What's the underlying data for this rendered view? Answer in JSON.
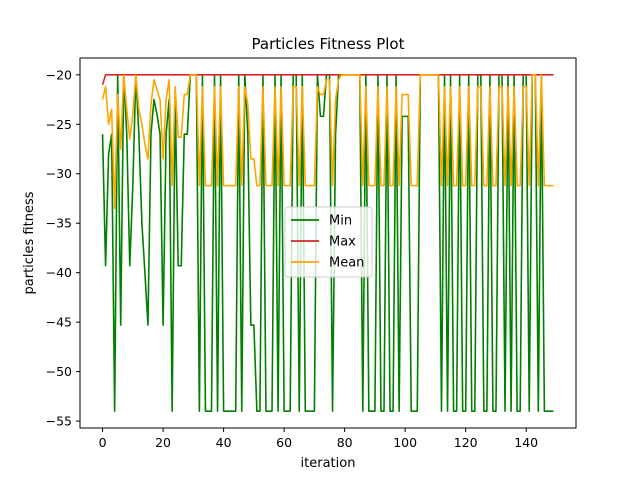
{
  "chart_data": {
    "type": "line",
    "title": "Particles Fitness Plot",
    "xlabel": "iteration",
    "ylabel": "particles fitness",
    "xlim": [
      -7.45,
      156.45
    ],
    "ylim": [
      -55.7,
      -18.3
    ],
    "xticks": [
      0,
      20,
      40,
      60,
      80,
      100,
      120,
      140
    ],
    "yticks": [
      -55,
      -50,
      -45,
      -40,
      -35,
      -30,
      -25,
      -20
    ],
    "grid": false,
    "legend": "center",
    "series": [
      {
        "name": "Min",
        "color": "#008000",
        "points": [
          [
            0,
            -26
          ],
          [
            1,
            -39.3
          ],
          [
            2,
            -28
          ],
          [
            3,
            -26
          ],
          [
            4,
            -54
          ],
          [
            5,
            -20
          ],
          [
            6,
            -45.3
          ],
          [
            7,
            -20
          ],
          [
            8,
            -26
          ],
          [
            9,
            -39.3
          ],
          [
            10,
            -31.2
          ],
          [
            11,
            -20
          ],
          [
            12,
            -26
          ],
          [
            13,
            -35
          ],
          [
            14,
            -40
          ],
          [
            15,
            -45.3
          ],
          [
            16,
            -26
          ],
          [
            17,
            -22.5
          ],
          [
            18,
            -24
          ],
          [
            19,
            -26
          ],
          [
            20,
            -45.3
          ],
          [
            21,
            -26
          ],
          [
            22,
            -22.5
          ],
          [
            23,
            -54
          ],
          [
            24,
            -22.5
          ],
          [
            25,
            -39.3
          ],
          [
            26,
            -39.3
          ],
          [
            27,
            -26
          ],
          [
            28,
            -26
          ],
          [
            29,
            -20
          ],
          [
            30,
            -20
          ],
          [
            31,
            -20
          ],
          [
            32,
            -54
          ],
          [
            33,
            -20
          ],
          [
            34,
            -54
          ],
          [
            35,
            -54
          ],
          [
            36,
            -54
          ],
          [
            37,
            -20
          ],
          [
            38,
            -54
          ],
          [
            39,
            -20
          ],
          [
            40,
            -54
          ],
          [
            41,
            -54
          ],
          [
            42,
            -54
          ],
          [
            43,
            -54
          ],
          [
            44,
            -54
          ],
          [
            45,
            -20
          ],
          [
            46,
            -54
          ],
          [
            47,
            -20
          ],
          [
            48,
            -26
          ],
          [
            49,
            -45.3
          ],
          [
            50,
            -45.3
          ],
          [
            51,
            -54
          ],
          [
            52,
            -54
          ],
          [
            53,
            -20
          ],
          [
            54,
            -54
          ],
          [
            55,
            -54
          ],
          [
            56,
            -54
          ],
          [
            57,
            -20
          ],
          [
            58,
            -54
          ],
          [
            59,
            -20
          ],
          [
            60,
            -54
          ],
          [
            61,
            -54
          ],
          [
            62,
            -54
          ],
          [
            63,
            -20
          ],
          [
            64,
            -20
          ],
          [
            65,
            -54
          ],
          [
            66,
            -20
          ],
          [
            67,
            -54
          ],
          [
            68,
            -54
          ],
          [
            69,
            -54
          ],
          [
            70,
            -54
          ],
          [
            71,
            -20
          ],
          [
            72,
            -24.2
          ],
          [
            73,
            -24.2
          ],
          [
            74,
            -20
          ],
          [
            75,
            -20
          ],
          [
            76,
            -54
          ],
          [
            77,
            -26
          ],
          [
            78,
            -20
          ],
          [
            79,
            -20
          ],
          [
            80,
            -20
          ],
          [
            81,
            -20
          ],
          [
            82,
            -20
          ],
          [
            83,
            -20
          ],
          [
            84,
            -20
          ],
          [
            85,
            -20
          ],
          [
            86,
            -54
          ],
          [
            87,
            -20
          ],
          [
            88,
            -54
          ],
          [
            89,
            -54
          ],
          [
            90,
            -54
          ],
          [
            91,
            -20
          ],
          [
            92,
            -54
          ],
          [
            93,
            -54
          ],
          [
            94,
            -20
          ],
          [
            95,
            -54
          ],
          [
            96,
            -54
          ],
          [
            97,
            -20
          ],
          [
            98,
            -54
          ],
          [
            99,
            -24.2
          ],
          [
            100,
            -24.2
          ],
          [
            101,
            -24.2
          ],
          [
            102,
            -54
          ],
          [
            103,
            -54
          ],
          [
            104,
            -54
          ],
          [
            105,
            -20
          ],
          [
            106,
            -20
          ],
          [
            107,
            -20
          ],
          [
            108,
            -20
          ],
          [
            109,
            -20
          ],
          [
            110,
            -20
          ],
          [
            111,
            -20
          ],
          [
            112,
            -54
          ],
          [
            113,
            -20
          ],
          [
            114,
            -54
          ],
          [
            115,
            -20
          ],
          [
            116,
            -54
          ],
          [
            117,
            -54
          ],
          [
            118,
            -20
          ],
          [
            119,
            -54
          ],
          [
            120,
            -54
          ],
          [
            121,
            -20
          ],
          [
            122,
            -54
          ],
          [
            123,
            -54
          ],
          [
            124,
            -20
          ],
          [
            125,
            -20
          ],
          [
            126,
            -54
          ],
          [
            127,
            -54
          ],
          [
            128,
            -20
          ],
          [
            129,
            -54
          ],
          [
            130,
            -54
          ],
          [
            131,
            -20
          ],
          [
            132,
            -20
          ],
          [
            133,
            -54
          ],
          [
            134,
            -20
          ],
          [
            135,
            -54
          ],
          [
            136,
            -20
          ],
          [
            137,
            -54
          ],
          [
            138,
            -54
          ],
          [
            139,
            -20
          ],
          [
            140,
            -20
          ],
          [
            141,
            -54
          ],
          [
            142,
            -20
          ],
          [
            143,
            -20
          ],
          [
            144,
            -54
          ],
          [
            145,
            -20
          ],
          [
            146,
            -54
          ],
          [
            147,
            -54
          ],
          [
            148,
            -54
          ],
          [
            149,
            -54
          ]
        ]
      },
      {
        "name": "Max",
        "color": "#d62728",
        "points": [
          [
            0,
            -21
          ],
          [
            1,
            -20
          ],
          [
            149,
            -20
          ]
        ]
      },
      {
        "name": "Mean",
        "color": "#ffa500",
        "points": [
          [
            0,
            -22.5
          ],
          [
            1,
            -21.2
          ],
          [
            2,
            -25
          ],
          [
            3,
            -23.5
          ],
          [
            4,
            -33.5
          ],
          [
            5,
            -22
          ],
          [
            6,
            -27.5
          ],
          [
            7,
            -20
          ],
          [
            8,
            -23.5
          ],
          [
            9,
            -26.5
          ],
          [
            10,
            -24
          ],
          [
            11,
            -20
          ],
          [
            12,
            -23.5
          ],
          [
            13,
            -25
          ],
          [
            14,
            -27
          ],
          [
            15,
            -28.5
          ],
          [
            16,
            -23
          ],
          [
            17,
            -20.5
          ],
          [
            18,
            -21.5
          ],
          [
            19,
            -22.5
          ],
          [
            20,
            -28.5
          ],
          [
            21,
            -22.5
          ],
          [
            22,
            -20.5
          ],
          [
            23,
            -31.2
          ],
          [
            24,
            -21.2
          ],
          [
            25,
            -26.3
          ],
          [
            26,
            -26.3
          ],
          [
            27,
            -22
          ],
          [
            28,
            -22
          ],
          [
            29,
            -20
          ],
          [
            30,
            -20
          ],
          [
            31,
            -20
          ],
          [
            32,
            -31.2
          ],
          [
            33,
            -21.2
          ],
          [
            34,
            -31.2
          ],
          [
            35,
            -31.2
          ],
          [
            36,
            -31.2
          ],
          [
            37,
            -21.2
          ],
          [
            38,
            -31.2
          ],
          [
            39,
            -21.2
          ],
          [
            40,
            -31.2
          ],
          [
            41,
            -31.2
          ],
          [
            42,
            -31.2
          ],
          [
            43,
            -31.2
          ],
          [
            44,
            -31.2
          ],
          [
            45,
            -21.2
          ],
          [
            46,
            -31.2
          ],
          [
            47,
            -21.2
          ],
          [
            48,
            -23
          ],
          [
            49,
            -28.5
          ],
          [
            50,
            -28.5
          ],
          [
            51,
            -31.2
          ],
          [
            52,
            -31.2
          ],
          [
            53,
            -21.2
          ],
          [
            54,
            -31.2
          ],
          [
            55,
            -31.2
          ],
          [
            56,
            -31.2
          ],
          [
            57,
            -21.2
          ],
          [
            58,
            -31.2
          ],
          [
            59,
            -21.2
          ],
          [
            60,
            -31.2
          ],
          [
            61,
            -31.2
          ],
          [
            62,
            -31.2
          ],
          [
            63,
            -21.2
          ],
          [
            64,
            -21.2
          ],
          [
            65,
            -31.2
          ],
          [
            66,
            -21.2
          ],
          [
            67,
            -31.2
          ],
          [
            68,
            -31.2
          ],
          [
            69,
            -31.2
          ],
          [
            70,
            -31.2
          ],
          [
            71,
            -21.2
          ],
          [
            72,
            -22
          ],
          [
            73,
            -22
          ],
          [
            74,
            -20.5
          ],
          [
            75,
            -20.5
          ],
          [
            76,
            -31.2
          ],
          [
            77,
            -22.5
          ],
          [
            78,
            -20.5
          ],
          [
            79,
            -20
          ],
          [
            80,
            -20
          ],
          [
            81,
            -20
          ],
          [
            82,
            -20
          ],
          [
            83,
            -20
          ],
          [
            84,
            -20
          ],
          [
            85,
            -20
          ],
          [
            86,
            -31.2
          ],
          [
            87,
            -21.2
          ],
          [
            88,
            -31.2
          ],
          [
            89,
            -31.2
          ],
          [
            90,
            -31.2
          ],
          [
            91,
            -21.2
          ],
          [
            92,
            -31.2
          ],
          [
            93,
            -31.2
          ],
          [
            94,
            -21.2
          ],
          [
            95,
            -31.2
          ],
          [
            96,
            -31.2
          ],
          [
            97,
            -21.2
          ],
          [
            98,
            -31.2
          ],
          [
            99,
            -22
          ],
          [
            100,
            -22
          ],
          [
            101,
            -22
          ],
          [
            102,
            -31.2
          ],
          [
            103,
            -31.2
          ],
          [
            104,
            -31.2
          ],
          [
            105,
            -20
          ],
          [
            106,
            -20
          ],
          [
            107,
            -20
          ],
          [
            108,
            -20
          ],
          [
            109,
            -20
          ],
          [
            110,
            -20
          ],
          [
            111,
            -20
          ],
          [
            112,
            -31.2
          ],
          [
            113,
            -21.2
          ],
          [
            114,
            -31.2
          ],
          [
            115,
            -21.2
          ],
          [
            116,
            -31.2
          ],
          [
            117,
            -31.2
          ],
          [
            118,
            -21.2
          ],
          [
            119,
            -31.2
          ],
          [
            120,
            -31.2
          ],
          [
            121,
            -21.2
          ],
          [
            122,
            -31.2
          ],
          [
            123,
            -31.2
          ],
          [
            124,
            -21.2
          ],
          [
            125,
            -21.2
          ],
          [
            126,
            -31.2
          ],
          [
            127,
            -31.2
          ],
          [
            128,
            -21.2
          ],
          [
            129,
            -31.2
          ],
          [
            130,
            -31.2
          ],
          [
            131,
            -21.2
          ],
          [
            132,
            -21.2
          ],
          [
            133,
            -31.2
          ],
          [
            134,
            -21.2
          ],
          [
            135,
            -31.2
          ],
          [
            136,
            -21.2
          ],
          [
            137,
            -31.2
          ],
          [
            138,
            -31.2
          ],
          [
            139,
            -21.2
          ],
          [
            140,
            -21.2
          ],
          [
            141,
            -31.2
          ],
          [
            142,
            -20
          ],
          [
            143,
            -20
          ],
          [
            144,
            -31.2
          ],
          [
            145,
            -20
          ],
          [
            146,
            -31.2
          ],
          [
            147,
            -31.2
          ],
          [
            148,
            -31.2
          ],
          [
            149,
            -31.2
          ]
        ]
      }
    ]
  }
}
